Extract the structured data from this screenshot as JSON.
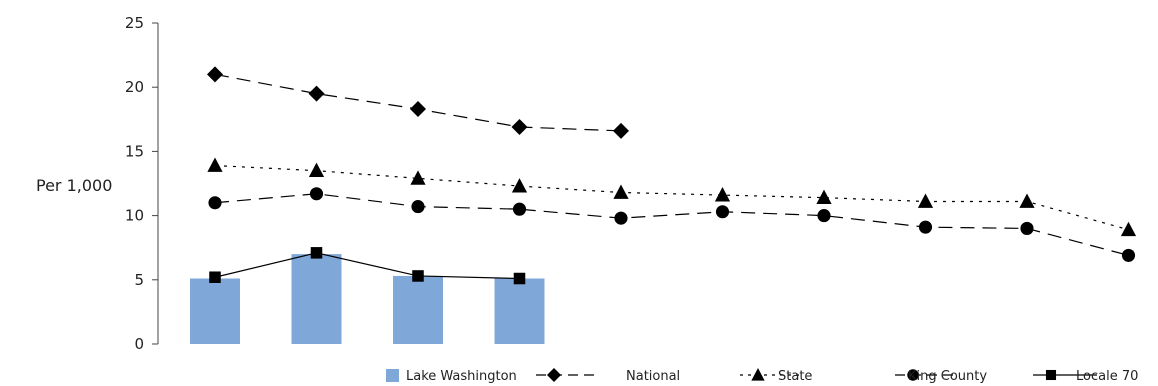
{
  "chart_data": {
    "type": "line",
    "ylabel": "Per 1,000",
    "ylim": [
      0,
      25
    ],
    "yticks": [
      0,
      5,
      10,
      15,
      20,
      25
    ],
    "grid": false,
    "legend_position": "bottom-right",
    "x_count": 10,
    "bar_series": {
      "name": "Lake Washington",
      "color": "#7fa7d8",
      "values": [
        5.1,
        7.0,
        5.3,
        5.1,
        null,
        null,
        null,
        null,
        null,
        null
      ]
    },
    "series": [
      {
        "name": "National",
        "marker": "diamond",
        "dash": "14,8",
        "values": [
          21.0,
          19.5,
          18.3,
          16.9,
          16.6,
          null,
          null,
          null,
          null,
          null
        ]
      },
      {
        "name": "State",
        "marker": "triangle",
        "dash": "3,6",
        "values": [
          13.9,
          13.5,
          12.9,
          12.3,
          11.8,
          11.6,
          11.4,
          11.1,
          11.1,
          8.9
        ]
      },
      {
        "name": "King County",
        "marker": "circle",
        "dash": "14,8",
        "values": [
          11.0,
          11.7,
          10.7,
          10.5,
          9.8,
          10.3,
          10.0,
          9.1,
          9.0,
          6.9
        ]
      },
      {
        "name": "Locale 70",
        "marker": "square",
        "dash": "",
        "values": [
          5.2,
          7.1,
          5.3,
          5.1,
          null,
          null,
          null,
          null,
          null,
          null
        ]
      }
    ]
  }
}
